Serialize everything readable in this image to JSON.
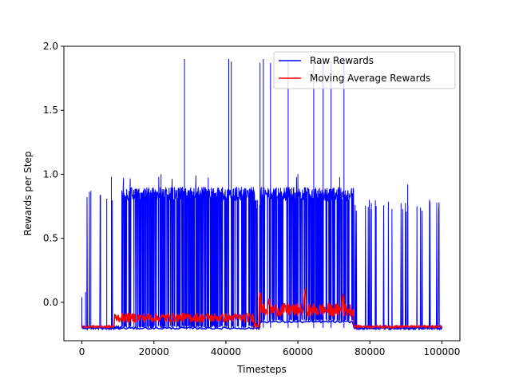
{
  "chart_data": {
    "type": "line",
    "xlabel": "Timesteps",
    "ylabel": "Rewards per Step",
    "xlim": [
      -5000,
      105000
    ],
    "ylim": [
      -0.3,
      2.0
    ],
    "xticks": [
      0,
      20000,
      40000,
      60000,
      80000,
      100000
    ],
    "xtick_labels": [
      "0",
      "20000",
      "40000",
      "60000",
      "80000",
      "100000"
    ],
    "yticks": [
      0.0,
      0.5,
      1.0,
      1.5,
      2.0
    ],
    "ytick_labels": [
      "0.0",
      "0.5",
      "1.0",
      "1.5",
      "2.0"
    ],
    "legend": {
      "placement": "top-right"
    },
    "grid": false,
    "series": [
      {
        "name": "Raw Rewards",
        "color": "#0000ff",
        "baseline": -0.2,
        "phases": [
          {
            "x_start": 0,
            "x_end": 11000,
            "floor": -0.2,
            "upper": 0.9,
            "density": 0.08
          },
          {
            "x_start": 11000,
            "x_end": 48000,
            "floor": -0.2,
            "upper": 0.9,
            "density": 0.97
          },
          {
            "x_start": 48000,
            "x_end": 49500,
            "floor": -0.2,
            "upper": 0.8,
            "density": 0.25
          },
          {
            "x_start": 49500,
            "x_end": 75500,
            "floor": -0.15,
            "upper": 0.9,
            "density": 0.98
          },
          {
            "x_start": 75500,
            "x_end": 100000,
            "floor": -0.2,
            "upper": 0.8,
            "density": 0.12
          }
        ],
        "spikes": [
          {
            "x": 28500,
            "y": 1.9
          },
          {
            "x": 40800,
            "y": 1.9
          },
          {
            "x": 41500,
            "y": 1.88
          },
          {
            "x": 49500,
            "y": 1.87
          },
          {
            "x": 50400,
            "y": 1.9
          },
          {
            "x": 52400,
            "y": 1.87
          },
          {
            "x": 57300,
            "y": 1.88
          },
          {
            "x": 64400,
            "y": 1.88
          },
          {
            "x": 67000,
            "y": 1.87
          },
          {
            "x": 69200,
            "y": 1.88
          },
          {
            "x": 72800,
            "y": 1.9
          },
          {
            "x": 2500,
            "y": 0.87
          },
          {
            "x": 6900,
            "y": 0.81
          },
          {
            "x": 8200,
            "y": 0.98
          },
          {
            "x": 1000,
            "y": 0.08
          },
          {
            "x": 0,
            "y": 0.04
          },
          {
            "x": 90500,
            "y": 0.92
          },
          {
            "x": 60000,
            "y": 1.0
          },
          {
            "x": 22000,
            "y": 1.0
          }
        ]
      },
      {
        "name": "Moving Average Rewards",
        "color": "#ff0000",
        "baseline": -0.19,
        "phases": [
          {
            "x_start": 0,
            "x_end": 9000,
            "level": -0.19,
            "noise": 0.01
          },
          {
            "x_start": 9000,
            "x_end": 48000,
            "level": -0.12,
            "noise": 0.035
          },
          {
            "x_start": 48000,
            "x_end": 49500,
            "level": -0.18,
            "noise": 0.02
          },
          {
            "x_start": 49500,
            "x_end": 75500,
            "level": -0.06,
            "noise": 0.05
          },
          {
            "x_start": 75500,
            "x_end": 100000,
            "level": -0.19,
            "noise": 0.01
          }
        ],
        "peaks": [
          {
            "x": 49500,
            "y": 0.09
          },
          {
            "x": 62000,
            "y": 0.11
          },
          {
            "x": 72500,
            "y": 0.07
          },
          {
            "x": 52000,
            "y": 0.04
          }
        ]
      }
    ]
  }
}
